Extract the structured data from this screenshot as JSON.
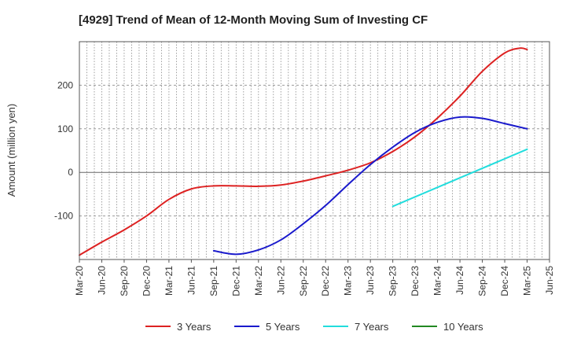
{
  "chart_data": {
    "type": "line",
    "title": "[4929]  Trend of Mean of 12-Month Moving Sum of Investing CF",
    "xlabel": "",
    "ylabel": "Amount (million yen)",
    "ylim": [
      -200,
      300
    ],
    "yticks": [
      -100,
      0,
      100,
      200
    ],
    "x_tick_labels": [
      "Mar-20",
      "Jun-20",
      "Sep-20",
      "Dec-20",
      "Mar-21",
      "Jun-21",
      "Sep-21",
      "Dec-21",
      "Mar-22",
      "Jun-22",
      "Sep-22",
      "Dec-22",
      "Mar-23",
      "Jun-23",
      "Sep-23",
      "Dec-23",
      "Mar-24",
      "Jun-24",
      "Sep-24",
      "Dec-24",
      "Mar-25",
      "Jun-25"
    ],
    "grid": true,
    "legend_position": "bottom",
    "series": [
      {
        "name": "3 Years",
        "color": "#dd2222",
        "points": [
          [
            "Mar-20",
            -190
          ],
          [
            "Jun-20",
            -160
          ],
          [
            "Sep-20",
            -132
          ],
          [
            "Dec-20",
            -100
          ],
          [
            "Mar-21",
            -62
          ],
          [
            "Jun-21",
            -38
          ],
          [
            "Sep-21",
            -31
          ],
          [
            "Dec-21",
            -31
          ],
          [
            "Mar-22",
            -32
          ],
          [
            "Jun-22",
            -29
          ],
          [
            "Sep-22",
            -20
          ],
          [
            "Dec-22",
            -8
          ],
          [
            "Mar-23",
            5
          ],
          [
            "Jun-23",
            22
          ],
          [
            "Sep-23",
            48
          ],
          [
            "Dec-23",
            82
          ],
          [
            "Mar-24",
            125
          ],
          [
            "Jun-24",
            175
          ],
          [
            "Sep-24",
            232
          ],
          [
            "Dec-24",
            274
          ],
          [
            "Feb-25",
            285
          ],
          [
            "Mar-25",
            282
          ]
        ]
      },
      {
        "name": "5 Years",
        "color": "#1a1acc",
        "points": [
          [
            "Sep-21",
            -180
          ],
          [
            "Dec-21",
            -188
          ],
          [
            "Mar-22",
            -178
          ],
          [
            "Jun-22",
            -155
          ],
          [
            "Sep-22",
            -118
          ],
          [
            "Dec-22",
            -76
          ],
          [
            "Mar-23",
            -28
          ],
          [
            "Jun-23",
            18
          ],
          [
            "Sep-23",
            58
          ],
          [
            "Dec-23",
            92
          ],
          [
            "Mar-24",
            115
          ],
          [
            "Jun-24",
            127
          ],
          [
            "Sep-24",
            124
          ],
          [
            "Dec-24",
            112
          ],
          [
            "Mar-25",
            100
          ]
        ]
      },
      {
        "name": "7 Years",
        "color": "#22dddd",
        "points": [
          [
            "Sep-23",
            -78
          ],
          [
            "Mar-25",
            53
          ]
        ]
      },
      {
        "name": "10 Years",
        "color": "#228822",
        "points": []
      }
    ]
  }
}
